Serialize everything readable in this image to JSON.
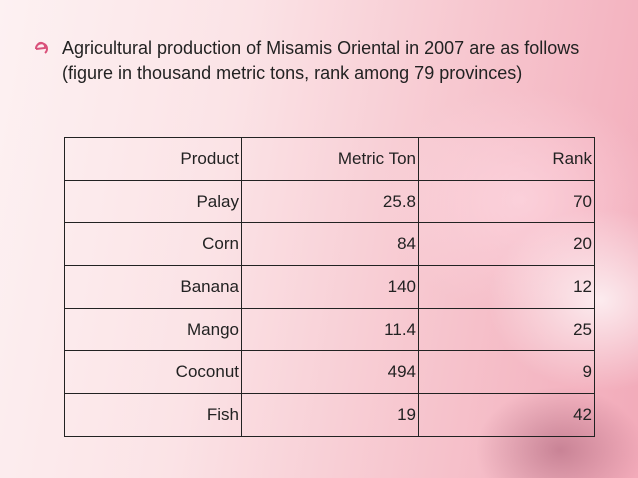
{
  "body": {
    "text": "Agricultural production of Misamis Oriental in 2007 are as follows (figure in thousand metric tons, rank among 79 provinces)"
  },
  "table": {
    "header": [
      "Product",
      "Metric Ton",
      "Rank"
    ],
    "rows": [
      [
        "Palay",
        "25.8",
        "70"
      ],
      [
        "Corn",
        "84",
        "20"
      ],
      [
        "Banana",
        "140",
        "12"
      ],
      [
        "Mango",
        "11.4",
        "25"
      ],
      [
        "Coconut",
        "494",
        "9"
      ],
      [
        "Fish",
        "19",
        "42"
      ]
    ]
  }
}
